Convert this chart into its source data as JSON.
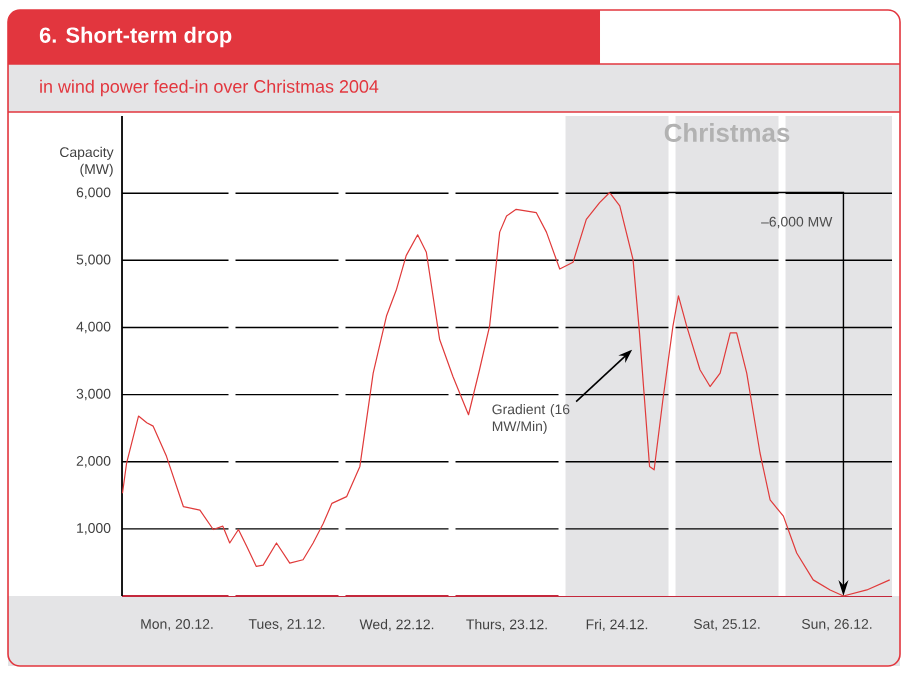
{
  "chart_data": {
    "type": "line",
    "title": "6. Short-term drop",
    "subtitle": "in wind power feed-in over Christmas 2004",
    "ylabel": "Capacity (MW)",
    "x": [
      "2004-12-20T00:06",
      "2004-12-20T01:00",
      "2004-12-20T03:36",
      "2004-12-20T05:24",
      "2004-12-20T06:48",
      "2004-12-20T09:42",
      "2004-12-20T13:24",
      "2004-12-20T17:00",
      "2004-12-20T19:54",
      "2004-12-20T22:00",
      "2004-12-20T23:30",
      "2004-12-21T01:24",
      "2004-12-21T03:12",
      "2004-12-21T05:18",
      "2004-12-21T06:48",
      "2004-12-21T09:42",
      "2004-12-21T12:36",
      "2004-12-21T15:30",
      "2004-12-21T17:42",
      "2004-12-21T19:54",
      "2004-12-21T21:48",
      "2004-12-22T01:00",
      "2004-12-22T03:54",
      "2004-12-22T06:48",
      "2004-12-22T09:42",
      "2004-12-22T11:54",
      "2004-12-22T14:00",
      "2004-12-22T16:30",
      "2004-12-22T18:24",
      "2004-12-22T21:18",
      "2004-12-23T00:12",
      "2004-12-23T03:36",
      "2004-12-23T06:00",
      "2004-12-23T08:12",
      "2004-12-23T10:24",
      "2004-12-23T11:54",
      "2004-12-23T14:00",
      "2004-12-23T18:24",
      "2004-12-23T20:36",
      "2004-12-23T23:30",
      "2004-12-24T02:24",
      "2004-12-24T05:18",
      "2004-12-24T08:12",
      "2004-12-24T10:24",
      "2004-12-24T12:36",
      "2004-12-24T15:30",
      "2004-12-24T16:54",
      "2004-12-24T19:06",
      "2004-12-24T20:06",
      "2004-12-24T22:00",
      "2004-12-25T00:12",
      "2004-12-25T01:24",
      "2004-12-25T03:12",
      "2004-12-25T06:06",
      "2004-12-25T08:18",
      "2004-12-25T10:30",
      "2004-12-25T12:42",
      "2004-12-25T14:06",
      "2004-12-25T16:18",
      "2004-12-25T19:12",
      "2004-12-25T21:24",
      "2004-12-26T00:18",
      "2004-12-26T03:12",
      "2004-12-26T06:48",
      "2004-12-26T10:30",
      "2004-12-26T13:24",
      "2004-12-26T18:30",
      "2004-12-26T23:30"
    ],
    "series": [
      {
        "color": "#e03a3a",
        "values": [
          1530,
          1980,
          2680,
          2580,
          2530,
          2080,
          1330,
          1280,
          990,
          1040,
          790,
          990,
          740,
          440,
          460,
          790,
          490,
          540,
          790,
          1080,
          1380,
          1480,
          1930,
          3320,
          4170,
          4570,
          5070,
          5380,
          5120,
          3820,
          3270,
          2700,
          3370,
          4020,
          5420,
          5660,
          5760,
          5710,
          5420,
          4870,
          4970,
          5610,
          5860,
          6010,
          5810,
          5010,
          3920,
          1930,
          1880,
          2920,
          4020,
          4470,
          4020,
          3370,
          3120,
          3320,
          3920,
          3920,
          3320,
          2130,
          1430,
          1190,
          640,
          240,
          90,
          0,
          90,
          240
        ]
      }
    ],
    "xlim": [
      "2004-12-20T00:00",
      "2004-12-27T00:00"
    ],
    "ylim": [
      0,
      7150
    ],
    "xticks": [
      {
        "value": "2004-12-20T12:00",
        "label": "Mon, 20.12."
      },
      {
        "value": "2004-12-21T00:00",
        "label": null
      },
      {
        "value": "2004-12-21T12:00",
        "label": "Tues, 21.12."
      },
      {
        "value": "2004-12-22T00:00",
        "label": null
      },
      {
        "value": "2004-12-22T12:00",
        "label": "Wed, 22.12."
      },
      {
        "value": "2004-12-23T00:00",
        "label": null
      },
      {
        "value": "2004-12-23T12:00",
        "label": "Thurs, 23.12."
      },
      {
        "value": "2004-12-24T00:00",
        "label": null
      },
      {
        "value": "2004-12-24T12:00",
        "label": "Fri, 24.12."
      },
      {
        "value": "2004-12-25T00:00",
        "label": null
      },
      {
        "value": "2004-12-25T12:00",
        "label": "Sat, 25.12."
      },
      {
        "value": "2004-12-26T00:00",
        "label": null
      },
      {
        "value": "2004-12-26T12:00",
        "label": "Sun, 26.12."
      }
    ],
    "yticks": [
      {
        "value": 1000,
        "label": "1,000"
      },
      {
        "value": 2000,
        "label": "2,000"
      },
      {
        "value": 3000,
        "label": "3,000"
      },
      {
        "value": 4000,
        "label": "4,000"
      },
      {
        "value": 5000,
        "label": "5,000"
      },
      {
        "value": 6000,
        "label": "6,000"
      }
    ],
    "grid": true,
    "marker": "none",
    "bands": [
      {
        "axis": "x",
        "from": "2004-12-24T00:00",
        "to": "2004-12-27T00:00",
        "label": "Christmas",
        "color": "#e4e4e6"
      }
    ],
    "annotations": [
      {
        "text": "Gradient (16 MW/Min)",
        "x": "2004-12-24T15:18",
        "y": 3670
      },
      "–6,000 MW"
    ]
  }
}
